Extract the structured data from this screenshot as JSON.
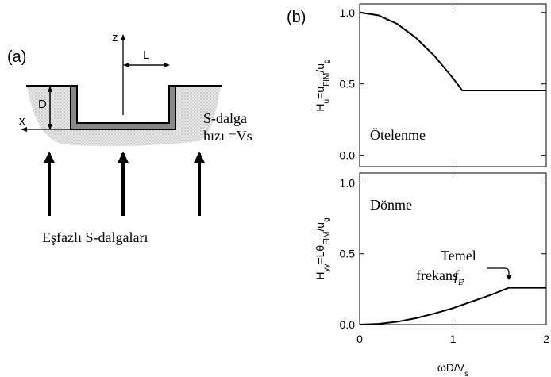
{
  "panel_a": {
    "label": "(a)",
    "z_label": "z",
    "L_label": "L",
    "D_label": "D",
    "x_label": "x",
    "wave_speed_line1": "S-dalga",
    "wave_speed_line2": "hızı =Vs",
    "caption": "Eşfazlı S-dalgaları"
  },
  "panel_b": {
    "label": "(b)"
  },
  "chart_data": [
    {
      "type": "line",
      "x": [
        0,
        0.2,
        0.4,
        0.6,
        0.8,
        1.0,
        1.1,
        2.0
      ],
      "values": [
        1.0,
        0.98,
        0.921,
        0.825,
        0.697,
        0.54,
        0.454,
        0.454
      ],
      "color": "#000000",
      "xlim": [
        0,
        2
      ],
      "xticks": [
        0,
        1,
        2
      ],
      "show_xtick_labels": false,
      "ylim": [
        -0.08,
        1.06
      ],
      "yticks": [
        {
          "value": 0,
          "label": "0.0"
        },
        0.5,
        {
          "value": 1,
          "label": "1.0"
        }
      ],
      "ylabel": [
        {
          "text": "H"
        },
        {
          "text": "u",
          "sub": true
        },
        {
          "text": "=u"
        },
        {
          "text": "FIM",
          "sub": true
        },
        {
          "text": "/u"
        },
        {
          "text": "g",
          "sub": true
        }
      ],
      "annotation": "Ötelenme"
    },
    {
      "type": "line",
      "x": [
        0,
        0.2,
        0.4,
        0.6,
        0.8,
        1.0,
        1.2,
        1.4,
        1.6,
        2.0
      ],
      "values": [
        0,
        0.005,
        0.02,
        0.045,
        0.078,
        0.116,
        0.162,
        0.208,
        0.26,
        0.26
      ],
      "color": "#000000",
      "xlim": [
        0,
        2
      ],
      "xticks": [
        0,
        1,
        2
      ],
      "show_xtick_labels": true,
      "ylim": [
        0,
        1.07
      ],
      "yticks": [
        {
          "value": 0,
          "label": "0.0"
        },
        0.5,
        {
          "value": 1,
          "label": "1.0"
        }
      ],
      "ylabel": [
        {
          "text": "H"
        },
        {
          "text": "yy",
          "sub": true
        },
        {
          "text": "=Lθ"
        },
        {
          "text": "FIM",
          "sub": true
        },
        {
          "text": "/u"
        },
        {
          "text": "g",
          "sub": true
        }
      ],
      "xlabel": [
        {
          "text": "ωD/V"
        },
        {
          "text": "s",
          "sub": true
        }
      ],
      "annotation": "Dönme",
      "freq_label_line1": "Temel",
      "freq_label_line2": "frekans ,",
      "freq_symbol": [
        {
          "text": "f",
          "italic": true
        },
        {
          "text": "E",
          "sub": true,
          "italic": true
        }
      ]
    }
  ]
}
